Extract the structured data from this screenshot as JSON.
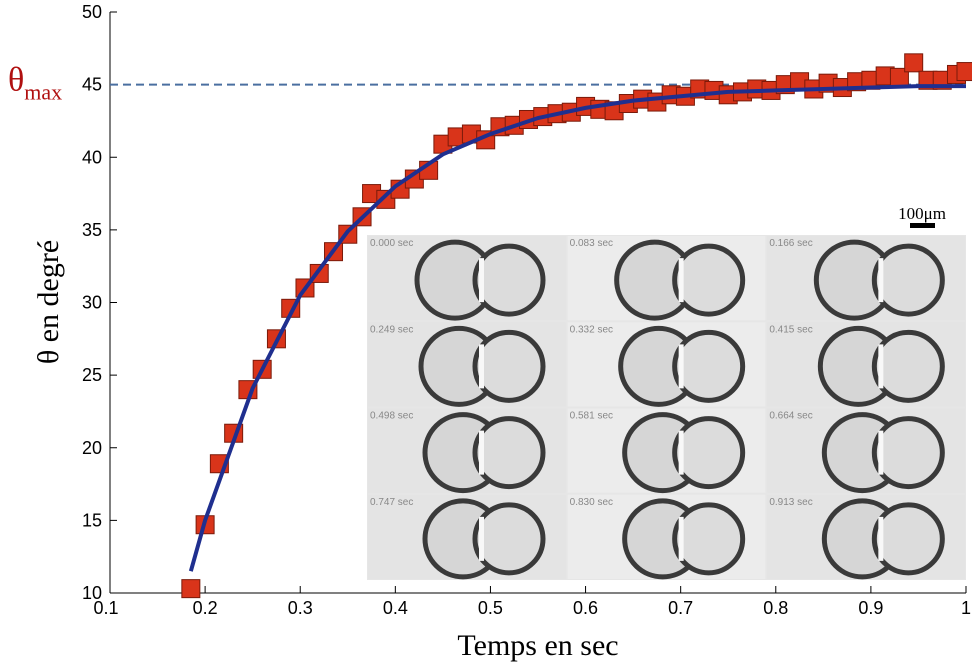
{
  "chart_data": {
    "type": "scatter",
    "x_label": "Temps en sec",
    "y_label": "θ en degré",
    "xlim": [
      0.1,
      1
    ],
    "xticks": [
      0.1,
      0.2,
      0.3,
      0.4,
      0.5,
      0.6,
      0.7,
      0.8,
      0.9,
      1
    ],
    "ylim": [
      10,
      50
    ],
    "yticks": [
      10,
      15,
      20,
      25,
      30,
      35,
      40,
      45,
      50
    ],
    "points": {
      "color": "#d9341a",
      "x": [
        0.185,
        0.2,
        0.215,
        0.23,
        0.245,
        0.26,
        0.275,
        0.29,
        0.305,
        0.32,
        0.335,
        0.35,
        0.365,
        0.375,
        0.39,
        0.405,
        0.42,
        0.435,
        0.45,
        0.465,
        0.48,
        0.495,
        0.51,
        0.525,
        0.54,
        0.555,
        0.57,
        0.585,
        0.6,
        0.615,
        0.63,
        0.645,
        0.66,
        0.675,
        0.69,
        0.705,
        0.72,
        0.735,
        0.75,
        0.765,
        0.78,
        0.795,
        0.81,
        0.825,
        0.84,
        0.855,
        0.87,
        0.885,
        0.9,
        0.915,
        0.93,
        0.945,
        0.96,
        0.975,
        0.99,
        1.0
      ],
      "y": [
        10.3,
        14.7,
        18.9,
        21,
        24,
        25.4,
        27.5,
        29.6,
        31,
        32,
        33.5,
        34.7,
        35.9,
        37.5,
        37.1,
        37.8,
        38.5,
        39.1,
        40.9,
        41.4,
        41.6,
        41.2,
        42.1,
        42.2,
        42.6,
        42.8,
        43,
        43.1,
        43.5,
        43.3,
        43.2,
        43.7,
        44,
        43.8,
        44.3,
        44.2,
        44.7,
        44.6,
        44.3,
        44.5,
        44.7,
        44.6,
        45,
        45.2,
        44.7,
        45.1,
        44.8,
        45.2,
        45.3,
        45.6,
        45.5,
        46.5,
        45.3,
        45.3,
        45.7,
        45.9
      ]
    },
    "fit": {
      "color": "#1f2f8f",
      "x": [
        0.185,
        0.2,
        0.25,
        0.3,
        0.35,
        0.4,
        0.45,
        0.5,
        0.55,
        0.6,
        0.65,
        0.7,
        0.75,
        0.8,
        0.85,
        0.9,
        0.95,
        1.0
      ],
      "y": [
        11.5,
        15.0,
        24.1,
        30.5,
        34.9,
        38.0,
        40.2,
        41.6,
        42.7,
        43.4,
        43.9,
        44.2,
        44.5,
        44.6,
        44.7,
        44.8,
        44.9,
        44.9
      ]
    },
    "reference_line": {
      "y": 45,
      "label": "θ",
      "label_sub": "max",
      "color": "#4a6fa0",
      "label_color": "#b01010"
    },
    "inset": {
      "scale_label": "100μm",
      "frame_labels": [
        "0.000 sec",
        "0.083 sec",
        "0.166 sec",
        "0.249 sec",
        "0.332 sec",
        "0.415 sec",
        "0.498 sec",
        "0.581 sec",
        "0.664 sec",
        "0.747 sec",
        "0.830 sec",
        "0.913 sec"
      ]
    }
  }
}
